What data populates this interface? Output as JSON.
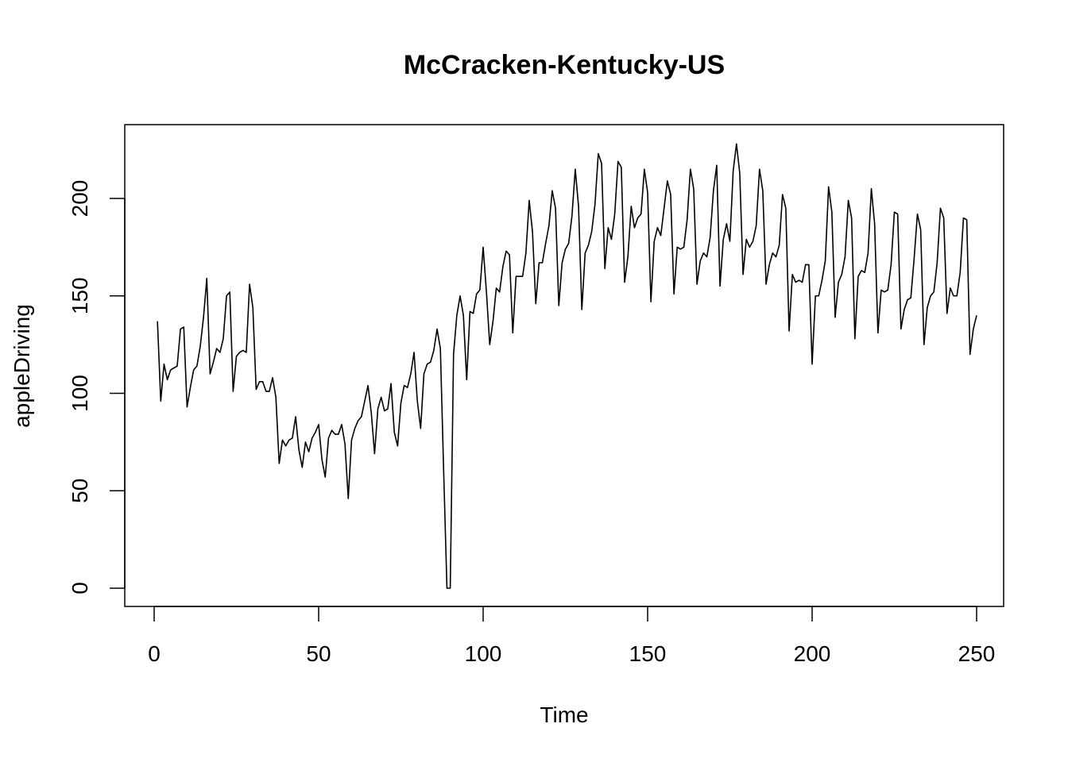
{
  "chart_data": {
    "type": "line",
    "title": "McCracken-Kentucky-US",
    "xlabel": "Time",
    "ylabel": "appleDriving",
    "xlim": [
      0,
      250
    ],
    "ylim": [
      0,
      225
    ],
    "x_ticks": [
      0,
      50,
      100,
      150,
      200,
      250
    ],
    "y_ticks": [
      0,
      50,
      100,
      150,
      200
    ],
    "x_tick_labels": [
      "0",
      "50",
      "100",
      "150",
      "200",
      "250"
    ],
    "y_tick_labels": [
      "0",
      "50",
      "100",
      "150",
      "200"
    ],
    "grid": false,
    "legend": "none",
    "line_color": "#000000",
    "series": [
      {
        "x_start": 1,
        "x_step": 1,
        "values": [
          137,
          96,
          115,
          107,
          112,
          113,
          114,
          133,
          134,
          93,
          103,
          112,
          114,
          124,
          139,
          159,
          110,
          116,
          123,
          121,
          128,
          150,
          152,
          101,
          119,
          121,
          122,
          121,
          156,
          144,
          102,
          106,
          106,
          101,
          101,
          108,
          98,
          64,
          76,
          73,
          76,
          77,
          88,
          71,
          62,
          75,
          70,
          77,
          80,
          84,
          66,
          57,
          77,
          81,
          79,
          79,
          84,
          74,
          46,
          76,
          82,
          86,
          88,
          96,
          104,
          90,
          69,
          92,
          98,
          91,
          92,
          105,
          80,
          73,
          95,
          104,
          103,
          110,
          121,
          96,
          82,
          110,
          115,
          116,
          122,
          133,
          123,
          60,
          0,
          0,
          120,
          140,
          150,
          140,
          107,
          142,
          141,
          151,
          153,
          175,
          152,
          125,
          137,
          154,
          152,
          165,
          173,
          171,
          131,
          160,
          160,
          160,
          172,
          199,
          183,
          146,
          167,
          167,
          177,
          186,
          204,
          195,
          145,
          167,
          174,
          177,
          191,
          215,
          196,
          143,
          172,
          176,
          183,
          197,
          223,
          218,
          164,
          185,
          179,
          192,
          219,
          216,
          157,
          170,
          196,
          185,
          190,
          192,
          215,
          203,
          147,
          178,
          185,
          181,
          195,
          209,
          202,
          151,
          175,
          174,
          175,
          189,
          215,
          205,
          156,
          168,
          172,
          170,
          180,
          204,
          217,
          155,
          179,
          187,
          178,
          214,
          228,
          213,
          161,
          179,
          175,
          178,
          186,
          215,
          204,
          156,
          166,
          172,
          170,
          176,
          202,
          195,
          132,
          161,
          157,
          158,
          157,
          166,
          166,
          115,
          150,
          150,
          158,
          168,
          206,
          193,
          139,
          157,
          161,
          170,
          199,
          190,
          128,
          160,
          163,
          162,
          172,
          205,
          187,
          131,
          153,
          152,
          153,
          166,
          193,
          192,
          133,
          143,
          148,
          149,
          169,
          192,
          184,
          125,
          144,
          150,
          152,
          167,
          195,
          190,
          141,
          154,
          150,
          150,
          162,
          190,
          189,
          120,
          133,
          140
        ]
      }
    ]
  }
}
